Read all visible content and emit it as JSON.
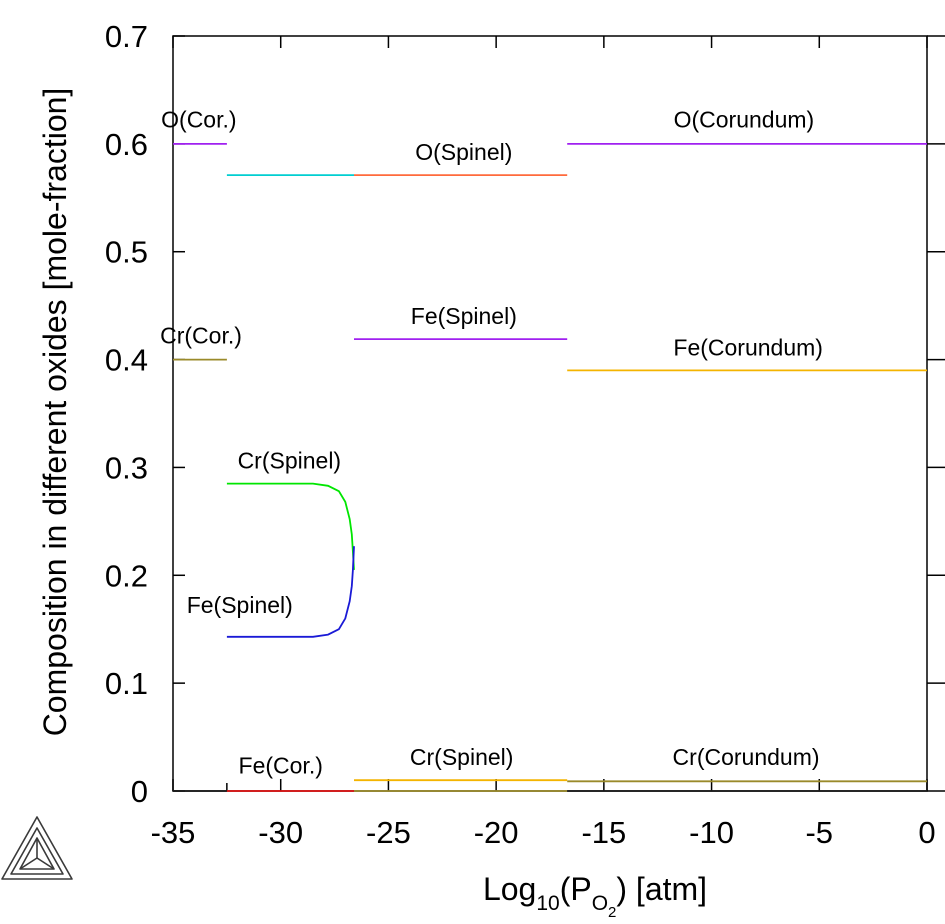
{
  "chart_data": {
    "type": "line",
    "xlabel": {
      "base": "Log",
      "sub1": "10",
      "mid": "(P",
      "sub2": "O",
      "sub3": "2",
      "tail": ") [atm]"
    },
    "ylabel": "Composition in different oxides [mole-fraction]",
    "xlim": [
      -35,
      0
    ],
    "ylim": [
      0,
      0.7
    ],
    "xticks": [
      -35,
      -30,
      -25,
      -20,
      -15,
      -10,
      -5,
      0
    ],
    "xtick_labels": [
      "-35",
      "-30",
      "-25",
      "-20",
      "-15",
      "-10",
      "-5",
      "0"
    ],
    "yticks": [
      0,
      0.1,
      0.2,
      0.3,
      0.4,
      0.5,
      0.6,
      0.7
    ],
    "ytick_labels": [
      "0",
      "0.1",
      "0.2",
      "0.3",
      "0.4",
      "0.5",
      "0.6",
      "0.7"
    ],
    "grid": false,
    "legend": "none",
    "series": [
      {
        "color": "#a020f0",
        "x": [
          -35,
          -32.5
        ],
        "y": [
          0.6,
          0.6
        ]
      },
      {
        "color": "#00ced1",
        "x": [
          -32.5,
          -26.6
        ],
        "y": [
          0.571,
          0.571
        ]
      },
      {
        "color": "#ff6a3c",
        "x": [
          -26.6,
          -16.7
        ],
        "y": [
          0.571,
          0.571
        ]
      },
      {
        "color": "#a020f0",
        "x": [
          -16.7,
          0
        ],
        "y": [
          0.6,
          0.6
        ]
      },
      {
        "color": "#9a8a2a",
        "x": [
          -35,
          -32.5
        ],
        "y": [
          0.4,
          0.4
        ]
      },
      {
        "color": "#a020f0",
        "x": [
          -26.6,
          -16.7
        ],
        "y": [
          0.419,
          0.419
        ]
      },
      {
        "color": "#f4b400",
        "x": [
          -16.7,
          0
        ],
        "y": [
          0.39,
          0.39
        ]
      },
      {
        "color": "#00e600",
        "x": [
          -32.5,
          -30,
          -28.5,
          -27.8,
          -27.3,
          -27.0,
          -26.8,
          -26.7,
          -26.65,
          -26.6
        ],
        "y": [
          0.285,
          0.285,
          0.285,
          0.283,
          0.278,
          0.268,
          0.252,
          0.238,
          0.222,
          0.205
        ]
      },
      {
        "color": "#1a1ad6",
        "x": [
          -32.5,
          -30,
          -28.5,
          -27.8,
          -27.3,
          -27.0,
          -26.8,
          -26.7,
          -26.65,
          -26.6
        ],
        "y": [
          0.143,
          0.143,
          0.143,
          0.145,
          0.15,
          0.16,
          0.176,
          0.19,
          0.205,
          0.227
        ]
      },
      {
        "color": "#1a1a1a",
        "x": [
          -35,
          -32.5
        ],
        "y": [
          0.0,
          0.0
        ]
      },
      {
        "color": "#dd1111",
        "x": [
          -32.5,
          -26.6
        ],
        "y": [
          0.0,
          0.0
        ]
      },
      {
        "color": "#f4b400",
        "x": [
          -26.6,
          -16.7
        ],
        "y": [
          0.01,
          0.01
        ]
      },
      {
        "color": "#9a8a2a",
        "x": [
          -26.6,
          -16.7
        ],
        "y": [
          0.0,
          0.0
        ]
      },
      {
        "color": "#9a8a2a",
        "x": [
          -16.7,
          0
        ],
        "y": [
          0.009,
          0.009
        ]
      },
      {
        "color": "#1a1a1a",
        "x": [
          -16.7,
          0
        ],
        "y": [
          0.0,
          0.0
        ]
      }
    ],
    "annotations": [
      {
        "text": "O(Cor.)",
        "x": -33.8,
        "y": 0.615
      },
      {
        "text": "O(Spinel)",
        "x": -21.5,
        "y": 0.585
      },
      {
        "text": "O(Corundum)",
        "x": -8.5,
        "y": 0.615
      },
      {
        "text": "Cr(Cor.)",
        "x": -33.7,
        "y": 0.415
      },
      {
        "text": "Fe(Spinel)",
        "x": -21.5,
        "y": 0.433
      },
      {
        "text": "Fe(Corundum)",
        "x": -8.3,
        "y": 0.404
      },
      {
        "text": "Cr(Spinel)",
        "x": -29.6,
        "y": 0.299
      },
      {
        "text": "Fe(Spinel)",
        "x": -31.9,
        "y": 0.165
      },
      {
        "text": "Fe(Cor.)",
        "x": -30.0,
        "y": 0.016
      },
      {
        "text": "Cr(Spinel)",
        "x": -21.6,
        "y": 0.024
      },
      {
        "text": "Cr(Corundum)",
        "x": -8.4,
        "y": 0.024
      }
    ]
  }
}
